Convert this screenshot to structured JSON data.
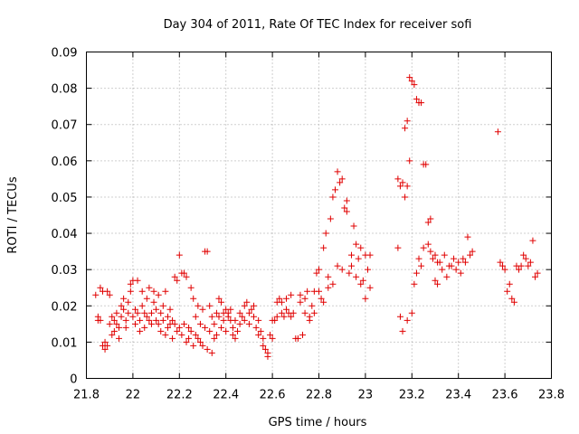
{
  "chart_data": {
    "type": "scatter",
    "title": "Day 304 of 2011, Rate Of TEC Index for receiver sofi",
    "xlabel": "GPS time / hours",
    "ylabel": "ROTI / TECUs",
    "xlim": [
      21.8,
      23.8
    ],
    "ylim": [
      0,
      0.09
    ],
    "x_ticks": [
      21.8,
      22.0,
      22.2,
      22.4,
      22.6,
      22.8,
      23.0,
      23.2,
      23.4,
      23.6,
      23.8
    ],
    "x_tick_labels": [
      "21.8",
      "22",
      "22.2",
      "22.4",
      "22.6",
      "22.8",
      "23",
      "23.2",
      "23.4",
      "23.6",
      "23.8"
    ],
    "y_ticks": [
      0,
      0.01,
      0.02,
      0.03,
      0.04,
      0.05,
      0.06,
      0.07,
      0.08,
      0.09
    ],
    "y_tick_labels": [
      "0",
      "0.01",
      "0.02",
      "0.03",
      "0.04",
      "0.05",
      "0.06",
      "0.07",
      "0.08",
      "0.09"
    ],
    "grid": true,
    "marker": "+",
    "color": "#e00000",
    "series": [
      {
        "name": "ROTI",
        "points": [
          [
            21.84,
            0.023
          ],
          [
            21.85,
            0.017
          ],
          [
            21.85,
            0.016
          ],
          [
            21.86,
            0.025
          ],
          [
            21.86,
            0.016
          ],
          [
            21.87,
            0.024
          ],
          [
            21.87,
            0.009
          ],
          [
            21.88,
            0.008
          ],
          [
            21.88,
            0.01
          ],
          [
            21.89,
            0.009
          ],
          [
            21.89,
            0.024
          ],
          [
            21.9,
            0.023
          ],
          [
            21.9,
            0.015
          ],
          [
            21.91,
            0.012
          ],
          [
            21.91,
            0.017
          ],
          [
            21.92,
            0.016
          ],
          [
            21.92,
            0.013
          ],
          [
            21.93,
            0.018
          ],
          [
            21.93,
            0.015
          ],
          [
            21.94,
            0.014
          ],
          [
            21.94,
            0.011
          ],
          [
            21.95,
            0.02
          ],
          [
            21.95,
            0.017
          ],
          [
            21.96,
            0.022
          ],
          [
            21.96,
            0.019
          ],
          [
            21.97,
            0.016
          ],
          [
            21.97,
            0.014
          ],
          [
            21.98,
            0.018
          ],
          [
            21.98,
            0.021
          ],
          [
            21.99,
            0.026
          ],
          [
            21.99,
            0.024
          ],
          [
            22.0,
            0.027
          ],
          [
            22.0,
            0.017
          ],
          [
            22.01,
            0.015
          ],
          [
            22.01,
            0.019
          ],
          [
            22.02,
            0.027
          ],
          [
            22.02,
            0.018
          ],
          [
            22.03,
            0.016
          ],
          [
            22.03,
            0.013
          ],
          [
            22.04,
            0.024
          ],
          [
            22.04,
            0.02
          ],
          [
            22.05,
            0.018
          ],
          [
            22.05,
            0.014
          ],
          [
            22.06,
            0.022
          ],
          [
            22.06,
            0.017
          ],
          [
            22.07,
            0.025
          ],
          [
            22.07,
            0.016
          ],
          [
            22.08,
            0.015
          ],
          [
            22.08,
            0.018
          ],
          [
            22.09,
            0.024
          ],
          [
            22.09,
            0.021
          ],
          [
            22.1,
            0.019
          ],
          [
            22.1,
            0.016
          ],
          [
            22.11,
            0.023
          ],
          [
            22.11,
            0.015
          ],
          [
            22.12,
            0.018
          ],
          [
            22.12,
            0.013
          ],
          [
            22.13,
            0.02
          ],
          [
            22.13,
            0.016
          ],
          [
            22.14,
            0.024
          ],
          [
            22.14,
            0.012
          ],
          [
            22.15,
            0.017
          ],
          [
            22.15,
            0.014
          ],
          [
            22.16,
            0.015
          ],
          [
            22.16,
            0.019
          ],
          [
            22.17,
            0.011
          ],
          [
            22.17,
            0.016
          ],
          [
            22.18,
            0.028
          ],
          [
            22.18,
            0.015
          ],
          [
            22.19,
            0.013
          ],
          [
            22.19,
            0.027
          ],
          [
            22.2,
            0.034
          ],
          [
            22.2,
            0.014
          ],
          [
            22.21,
            0.029
          ],
          [
            22.21,
            0.012
          ],
          [
            22.22,
            0.029
          ],
          [
            22.22,
            0.015
          ],
          [
            22.23,
            0.028
          ],
          [
            22.23,
            0.01
          ],
          [
            22.24,
            0.014
          ],
          [
            22.24,
            0.011
          ],
          [
            22.25,
            0.025
          ],
          [
            22.25,
            0.013
          ],
          [
            22.26,
            0.022
          ],
          [
            22.26,
            0.009
          ],
          [
            22.27,
            0.012
          ],
          [
            22.27,
            0.017
          ],
          [
            22.28,
            0.011
          ],
          [
            22.28,
            0.02
          ],
          [
            22.29,
            0.015
          ],
          [
            22.29,
            0.01
          ],
          [
            22.3,
            0.019
          ],
          [
            22.3,
            0.009
          ],
          [
            22.31,
            0.035
          ],
          [
            22.31,
            0.014
          ],
          [
            22.32,
            0.035
          ],
          [
            22.32,
            0.008
          ],
          [
            22.33,
            0.02
          ],
          [
            22.33,
            0.013
          ],
          [
            22.34,
            0.017
          ],
          [
            22.34,
            0.007
          ],
          [
            22.35,
            0.015
          ],
          [
            22.35,
            0.011
          ],
          [
            22.36,
            0.018
          ],
          [
            22.36,
            0.012
          ],
          [
            22.37,
            0.022
          ],
          [
            22.37,
            0.017
          ],
          [
            22.38,
            0.021
          ],
          [
            22.38,
            0.014
          ],
          [
            22.39,
            0.018
          ],
          [
            22.39,
            0.016
          ],
          [
            22.4,
            0.019
          ],
          [
            22.4,
            0.013
          ],
          [
            22.41,
            0.018
          ],
          [
            22.41,
            0.017
          ],
          [
            22.42,
            0.019
          ],
          [
            22.42,
            0.016
          ],
          [
            22.43,
            0.014
          ],
          [
            22.43,
            0.012
          ],
          [
            22.44,
            0.016
          ],
          [
            22.44,
            0.011
          ],
          [
            22.45,
            0.013
          ],
          [
            22.46,
            0.015
          ],
          [
            22.46,
            0.018
          ],
          [
            22.47,
            0.017
          ],
          [
            22.48,
            0.016
          ],
          [
            22.48,
            0.02
          ],
          [
            22.49,
            0.021
          ],
          [
            22.5,
            0.018
          ],
          [
            22.5,
            0.015
          ],
          [
            22.51,
            0.019
          ],
          [
            22.52,
            0.017
          ],
          [
            22.52,
            0.02
          ],
          [
            22.53,
            0.014
          ],
          [
            22.54,
            0.016
          ],
          [
            22.54,
            0.012
          ],
          [
            22.55,
            0.013
          ],
          [
            22.56,
            0.011
          ],
          [
            22.56,
            0.009
          ],
          [
            22.57,
            0.008
          ],
          [
            22.58,
            0.007
          ],
          [
            22.58,
            0.006
          ],
          [
            22.59,
            0.012
          ],
          [
            22.6,
            0.016
          ],
          [
            22.6,
            0.011
          ],
          [
            22.61,
            0.016
          ],
          [
            22.62,
            0.021
          ],
          [
            22.62,
            0.017
          ],
          [
            22.63,
            0.022
          ],
          [
            22.64,
            0.021
          ],
          [
            22.64,
            0.018
          ],
          [
            22.65,
            0.017
          ],
          [
            22.66,
            0.022
          ],
          [
            22.66,
            0.019
          ],
          [
            22.67,
            0.018
          ],
          [
            22.68,
            0.017
          ],
          [
            22.68,
            0.023
          ],
          [
            22.69,
            0.018
          ],
          [
            22.7,
            0.011
          ],
          [
            22.71,
            0.011
          ],
          [
            22.72,
            0.021
          ],
          [
            22.72,
            0.023
          ],
          [
            22.73,
            0.012
          ],
          [
            22.74,
            0.022
          ],
          [
            22.74,
            0.018
          ],
          [
            22.75,
            0.024
          ],
          [
            22.76,
            0.017
          ],
          [
            22.76,
            0.016
          ],
          [
            22.77,
            0.02
          ],
          [
            22.78,
            0.024
          ],
          [
            22.78,
            0.018
          ],
          [
            22.79,
            0.029
          ],
          [
            22.8,
            0.03
          ],
          [
            22.8,
            0.024
          ],
          [
            22.81,
            0.022
          ],
          [
            22.82,
            0.036
          ],
          [
            22.82,
            0.021
          ],
          [
            22.83,
            0.04
          ],
          [
            22.84,
            0.028
          ],
          [
            22.84,
            0.025
          ],
          [
            22.85,
            0.044
          ],
          [
            22.86,
            0.05
          ],
          [
            22.86,
            0.026
          ],
          [
            22.87,
            0.052
          ],
          [
            22.88,
            0.057
          ],
          [
            22.88,
            0.031
          ],
          [
            22.89,
            0.054
          ],
          [
            22.9,
            0.055
          ],
          [
            22.9,
            0.03
          ],
          [
            22.91,
            0.047
          ],
          [
            22.92,
            0.049
          ],
          [
            22.92,
            0.046
          ],
          [
            22.93,
            0.029
          ],
          [
            22.94,
            0.034
          ],
          [
            22.94,
            0.031
          ],
          [
            22.95,
            0.042
          ],
          [
            22.96,
            0.037
          ],
          [
            22.96,
            0.028
          ],
          [
            22.97,
            0.033
          ],
          [
            22.98,
            0.036
          ],
          [
            22.98,
            0.026
          ],
          [
            22.99,
            0.027
          ],
          [
            23.0,
            0.022
          ],
          [
            23.0,
            0.034
          ],
          [
            23.01,
            0.03
          ],
          [
            23.02,
            0.034
          ],
          [
            23.02,
            0.025
          ],
          [
            23.14,
            0.055
          ],
          [
            23.14,
            0.036
          ],
          [
            23.15,
            0.017
          ],
          [
            23.15,
            0.053
          ],
          [
            23.16,
            0.054
          ],
          [
            23.16,
            0.013
          ],
          [
            23.17,
            0.069
          ],
          [
            23.17,
            0.05
          ],
          [
            23.18,
            0.071
          ],
          [
            23.18,
            0.053
          ],
          [
            23.18,
            0.016
          ],
          [
            23.19,
            0.083
          ],
          [
            23.19,
            0.06
          ],
          [
            23.2,
            0.082
          ],
          [
            23.2,
            0.018
          ],
          [
            23.21,
            0.081
          ],
          [
            23.21,
            0.026
          ],
          [
            23.22,
            0.077
          ],
          [
            23.22,
            0.029
          ],
          [
            23.23,
            0.076
          ],
          [
            23.23,
            0.033
          ],
          [
            23.24,
            0.076
          ],
          [
            23.24,
            0.031
          ],
          [
            23.25,
            0.059
          ],
          [
            23.25,
            0.036
          ],
          [
            23.26,
            0.059
          ],
          [
            23.27,
            0.043
          ],
          [
            23.27,
            0.037
          ],
          [
            23.28,
            0.044
          ],
          [
            23.28,
            0.035
          ],
          [
            23.29,
            0.033
          ],
          [
            23.3,
            0.034
          ],
          [
            23.3,
            0.027
          ],
          [
            23.31,
            0.032
          ],
          [
            23.31,
            0.026
          ],
          [
            23.32,
            0.032
          ],
          [
            23.33,
            0.03
          ],
          [
            23.34,
            0.034
          ],
          [
            23.35,
            0.028
          ],
          [
            23.36,
            0.031
          ],
          [
            23.37,
            0.031
          ],
          [
            23.38,
            0.033
          ],
          [
            23.39,
            0.03
          ],
          [
            23.4,
            0.032
          ],
          [
            23.41,
            0.029
          ],
          [
            23.42,
            0.033
          ],
          [
            23.43,
            0.032
          ],
          [
            23.44,
            0.039
          ],
          [
            23.45,
            0.034
          ],
          [
            23.46,
            0.035
          ],
          [
            23.57,
            0.068
          ],
          [
            23.58,
            0.032
          ],
          [
            23.59,
            0.031
          ],
          [
            23.6,
            0.03
          ],
          [
            23.61,
            0.024
          ],
          [
            23.62,
            0.026
          ],
          [
            23.63,
            0.022
          ],
          [
            23.64,
            0.021
          ],
          [
            23.65,
            0.031
          ],
          [
            23.66,
            0.03
          ],
          [
            23.67,
            0.031
          ],
          [
            23.68,
            0.034
          ],
          [
            23.69,
            0.033
          ],
          [
            23.7,
            0.031
          ],
          [
            23.71,
            0.032
          ],
          [
            23.72,
            0.038
          ],
          [
            23.73,
            0.028
          ],
          [
            23.74,
            0.029
          ]
        ]
      }
    ]
  }
}
